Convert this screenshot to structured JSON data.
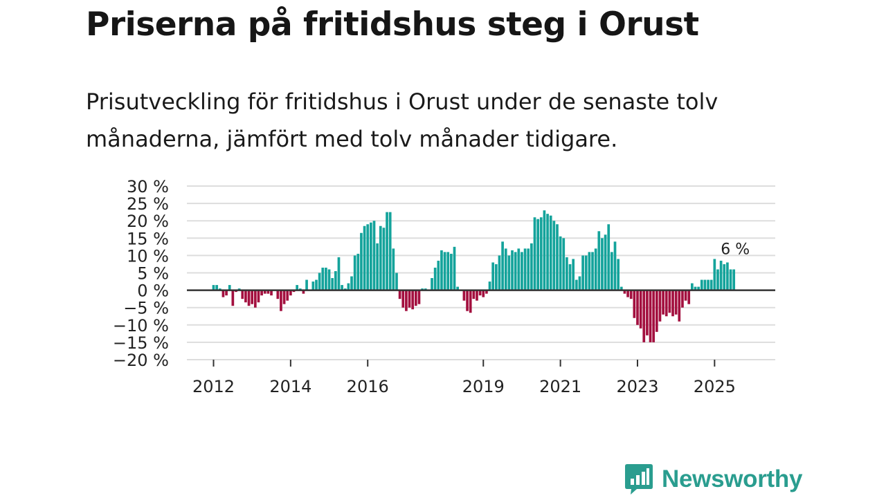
{
  "title": "Priserna på fritidshus steg i Orust",
  "subtitle": "Prisutveckling för fritidshus i Orust under de senaste tolv månaderna, jämfört med tolv månader tidigare.",
  "brand": {
    "name": "Newsworthy",
    "color": "#2a9d8f"
  },
  "colors": {
    "positive": "#14a39b",
    "negative": "#a3103f",
    "grid": "#dddddd",
    "zero": "#333333"
  },
  "chart_data": {
    "type": "bar",
    "title": "Priserna på fritidshus steg i Orust",
    "xlabel": "",
    "ylabel": "",
    "ylim": [
      -20,
      30
    ],
    "yticks": [
      30,
      25,
      20,
      15,
      10,
      5,
      0,
      -5,
      -10,
      -15,
      -20
    ],
    "ytick_labels": [
      "30 %",
      "25 %",
      "20 %",
      "15 %",
      "10 %",
      "5 %",
      "0 %",
      "−5 %",
      "−10 %",
      "−15 %",
      "−20 %"
    ],
    "xticks": [
      {
        "label": "2012",
        "index": 0
      },
      {
        "label": "2014",
        "index": 24
      },
      {
        "label": "2016",
        "index": 48
      },
      {
        "label": "2019",
        "index": 84
      },
      {
        "label": "2021",
        "index": 108
      },
      {
        "label": "2023",
        "index": 132
      },
      {
        "label": "2025",
        "index": 156
      }
    ],
    "annotation": "6 %",
    "series": [
      {
        "name": "Prisutveckling",
        "start": "2011-10",
        "values": [
          1.5,
          1.5,
          0.5,
          -2,
          -1.5,
          1.5,
          -4.5,
          -0.5,
          0.5,
          -2.5,
          -3.5,
          -4.5,
          -4,
          -5,
          -3.5,
          -1.5,
          -1,
          -1,
          -1.5,
          0,
          -2.5,
          -6,
          -4,
          -3,
          -1.5,
          -0.5,
          1.5,
          0.5,
          -1,
          3,
          0,
          2.5,
          3,
          5,
          6.5,
          6.5,
          6,
          3.5,
          5.5,
          9.5,
          1.5,
          0.5,
          2,
          4,
          10,
          10.5,
          16.5,
          18.5,
          19,
          19.5,
          20,
          13.5,
          18.5,
          18,
          22.5,
          22.5,
          12,
          5,
          -2.5,
          -5,
          -6,
          -5,
          -5.5,
          -4.5,
          -4,
          0.5,
          0.5,
          0,
          3.5,
          6.5,
          8.5,
          11.5,
          11,
          11,
          10.5,
          12.5,
          1,
          0,
          -3,
          -6,
          -6.5,
          -2.5,
          -3,
          -1.5,
          -2,
          -1,
          2.5,
          8,
          7.5,
          10,
          14,
          12,
          10,
          11.5,
          11,
          12,
          11,
          12,
          12,
          13.5,
          21,
          20.5,
          21,
          23,
          22,
          21.5,
          20,
          19,
          15.5,
          15,
          9.5,
          7.5,
          9,
          3,
          4,
          10,
          10,
          11,
          11,
          12,
          17,
          15,
          16,
          19,
          11,
          14,
          9,
          1,
          -1,
          -2,
          -2.5,
          -8,
          -10,
          -11,
          -15,
          -13,
          -15,
          -15,
          -12,
          -9,
          -7,
          -7.5,
          -6.5,
          -7.5,
          -7,
          -9,
          -5,
          -3,
          -4,
          2,
          1,
          1,
          3,
          3,
          3,
          3,
          9,
          6,
          8.5,
          7.5,
          8,
          6,
          6
        ]
      }
    ]
  }
}
